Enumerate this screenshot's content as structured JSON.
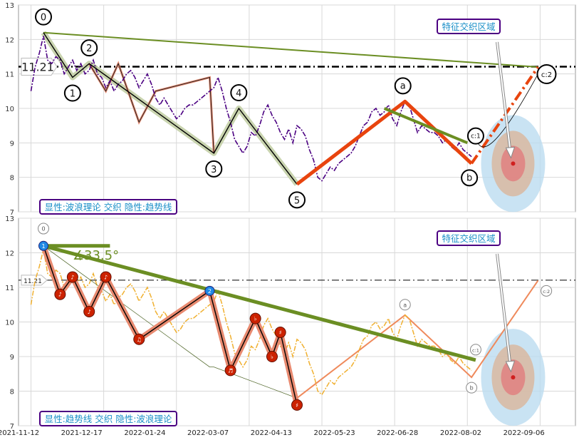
{
  "chart_data": [
    {
      "type": "line",
      "panel": "top",
      "title": "",
      "panel_label": "显性:波浪理论 交织 隐性:趋势线",
      "zone_label": "特征交织区域",
      "ylim": [
        7,
        13
      ],
      "yticks": [
        7,
        8,
        9,
        10,
        11,
        12,
        13
      ],
      "x_tick_labels": [],
      "grid": true,
      "reference_line": {
        "value": 11.21,
        "label": "11.21",
        "style": "dash-dot",
        "color": "#000000"
      },
      "series": [
        {
          "type": "price",
          "color": "#4b0082",
          "values": [
            [
              0,
              10.5
            ],
            [
              1,
              11.2
            ],
            [
              2,
              11.6
            ],
            [
              3,
              12.1
            ],
            [
              4,
              11.4
            ],
            [
              5,
              11.3
            ],
            [
              6,
              11.5
            ],
            [
              7,
              11.4
            ],
            [
              8,
              11.0
            ],
            [
              9,
              11.2
            ],
            [
              10,
              11.4
            ],
            [
              11,
              11.1
            ],
            [
              12,
              11.3
            ],
            [
              13,
              11.0
            ],
            [
              14,
              11.1
            ],
            [
              15,
              11.4
            ],
            [
              16,
              11.0
            ],
            [
              17,
              10.9
            ],
            [
              18,
              10.6
            ],
            [
              19,
              10.8
            ],
            [
              20,
              10.5
            ],
            [
              21,
              10.7
            ],
            [
              22,
              10.8
            ],
            [
              23,
              11.0
            ],
            [
              24,
              11.1
            ],
            [
              25,
              10.9
            ],
            [
              26,
              10.6
            ],
            [
              27,
              10.8
            ],
            [
              28,
              11.0
            ],
            [
              29,
              10.7
            ],
            [
              30,
              10.3
            ],
            [
              31,
              10.1
            ],
            [
              32,
              10.3
            ],
            [
              33,
              10.1
            ],
            [
              34,
              9.9
            ],
            [
              35,
              9.7
            ],
            [
              36,
              9.8
            ],
            [
              37,
              10.0
            ],
            [
              38,
              10.1
            ],
            [
              39,
              10.1
            ],
            [
              40,
              10.2
            ],
            [
              41,
              10.3
            ],
            [
              42,
              10.4
            ],
            [
              43,
              10.5
            ],
            [
              44,
              10.6
            ],
            [
              45,
              10.9
            ],
            [
              46,
              10.5
            ],
            [
              47,
              10.0
            ],
            [
              48,
              9.6
            ],
            [
              49,
              9.1
            ],
            [
              50,
              8.9
            ],
            [
              51,
              8.7
            ],
            [
              52,
              8.9
            ],
            [
              53,
              9.3
            ],
            [
              54,
              9.2
            ],
            [
              55,
              9.5
            ],
            [
              56,
              9.9
            ],
            [
              57,
              10.1
            ],
            [
              58,
              9.8
            ],
            [
              59,
              9.6
            ],
            [
              60,
              9.3
            ],
            [
              61,
              9.1
            ],
            [
              62,
              9.4
            ],
            [
              63,
              9.0
            ],
            [
              64,
              9.5
            ],
            [
              65,
              9.4
            ],
            [
              66,
              9.2
            ],
            [
              67,
              8.8
            ],
            [
              68,
              8.5
            ],
            [
              69,
              8.0
            ],
            [
              70,
              7.9
            ],
            [
              71,
              8.1
            ],
            [
              72,
              8.3
            ],
            [
              73,
              8.2
            ],
            [
              74,
              8.4
            ],
            [
              75,
              8.5
            ],
            [
              76,
              8.6
            ],
            [
              77,
              8.7
            ],
            [
              78,
              8.9
            ],
            [
              79,
              9.2
            ],
            [
              80,
              9.5
            ],
            [
              81,
              9.6
            ],
            [
              82,
              9.9
            ],
            [
              83,
              10.0
            ],
            [
              84,
              9.8
            ],
            [
              85,
              9.9
            ],
            [
              86,
              10.1
            ],
            [
              87,
              9.7
            ],
            [
              88,
              9.5
            ],
            [
              89,
              9.9
            ],
            [
              90,
              10.2
            ],
            [
              91,
              10.1
            ],
            [
              92,
              9.7
            ],
            [
              93,
              9.3
            ],
            [
              94,
              9.5
            ],
            [
              95,
              9.4
            ],
            [
              96,
              9.3
            ],
            [
              97,
              9.3
            ],
            [
              98,
              9.2
            ],
            [
              99,
              9.0
            ],
            [
              100,
              9.1
            ],
            [
              101,
              8.9
            ],
            [
              102,
              8.8
            ],
            [
              103,
              9.0
            ],
            [
              104,
              8.8
            ],
            [
              105,
              8.7
            ],
            [
              106,
              8.6
            ]
          ]
        },
        {
          "type": "wave",
          "color": "#000000",
          "points": [
            [
              3,
              12.2,
              "0"
            ],
            [
              10,
              10.9,
              "1"
            ],
            [
              14,
              11.3,
              "2"
            ],
            [
              44,
              8.7,
              "3"
            ],
            [
              50,
              10.0,
              "4"
            ],
            [
              64,
              7.8,
              "5"
            ]
          ]
        },
        {
          "type": "wave-correction",
          "color": "#e8440e",
          "points": [
            [
              64,
              7.8,
              "5"
            ],
            [
              90,
              10.2,
              "a"
            ],
            [
              106,
              8.4,
              "b"
            ],
            [
              122,
              11.2,
              "c:2"
            ]
          ],
          "mid_label": "c:1"
        },
        {
          "type": "trendline",
          "color": "#6b8e23",
          "points": [
            [
              3,
              12.2
            ],
            [
              122,
              11.2
            ]
          ]
        },
        {
          "type": "trendline",
          "color": "#6b8e23",
          "points": [
            [
              85,
              10.0
            ],
            [
              105,
              9.0
            ]
          ]
        }
      ],
      "target_zone": {
        "x": 116,
        "y": 8.4,
        "colors": [
          "#bcdcf0",
          "#d9b8a0",
          "#e08080",
          "#d02020"
        ]
      }
    },
    {
      "type": "line",
      "panel": "bottom",
      "title": "",
      "panel_label": "显性:趋势线 交织 隐性:波浪理论",
      "zone_label": "特征交织区域",
      "angle_label": "∡33.5°",
      "ylim": [
        7,
        13
      ],
      "yticks": [
        7,
        8,
        9,
        10,
        11,
        12,
        13
      ],
      "x_tick_labels": [
        "2021-11-12",
        "2021-12-17",
        "2022-01-24",
        "2022-03-07",
        "2022-04-13",
        "2022-05-23",
        "2022-06-28",
        "2022-08-02",
        "2022-09-06"
      ],
      "grid": true,
      "reference_line": {
        "value": 11.21,
        "label": "11.21",
        "style": "dash-dot",
        "color": "#000000"
      },
      "series": [
        {
          "type": "price",
          "color": "#f0b030",
          "same_as": "top"
        },
        {
          "type": "trend-zigzag",
          "color": "#000000",
          "points": [
            [
              3,
              12.2
            ],
            [
              7,
              10.8
            ],
            [
              10,
              11.3
            ],
            [
              14,
              10.3
            ],
            [
              18,
              11.3
            ],
            [
              26,
              9.5
            ],
            [
              43,
              10.9
            ],
            [
              48,
              8.6
            ],
            [
              54,
              10.1
            ],
            [
              58,
              9.0
            ],
            [
              60,
              9.7
            ],
            [
              64,
              7.6
            ]
          ],
          "markers": [
            "1",
            "♪",
            "♪",
            "♪",
            "♪",
            "♫",
            "2",
            "♬",
            "♭",
            "♭",
            "♯",
            "♯"
          ]
        },
        {
          "type": "trendline",
          "color": "#6b8e23",
          "points": [
            [
              3,
              12.2
            ],
            [
              107,
              8.9
            ]
          ]
        },
        {
          "type": "trendline",
          "color": "#6b8e23",
          "points": [
            [
              3,
              12.2
            ],
            [
              19,
              12.2
            ]
          ]
        },
        {
          "type": "wave-faint",
          "color": "#ef8a5c",
          "points": [
            [
              64,
              7.8,
              "5"
            ],
            [
              90,
              10.2,
              "a"
            ],
            [
              106,
              8.4,
              "b"
            ],
            [
              122,
              11.2,
              "c:2"
            ]
          ],
          "labels": [
            "0",
            "a",
            "b",
            "c:1",
            "c:2"
          ]
        }
      ],
      "target_zone": {
        "x": 116,
        "y": 8.4,
        "colors": [
          "#bcdcf0",
          "#d9b8a0",
          "#e08080",
          "#d02020"
        ]
      }
    }
  ]
}
